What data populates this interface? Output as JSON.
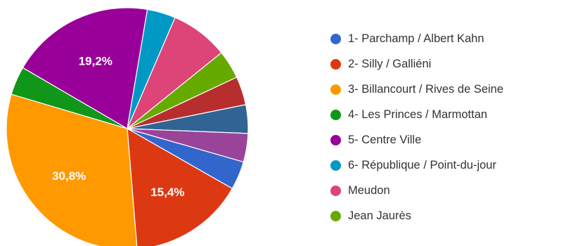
{
  "chart_data": {
    "type": "pie",
    "slices": [
      {
        "label": "1- Parchamp / Albert Kahn",
        "value": 3.8,
        "color": "#3366cc"
      },
      {
        "label": "2- Silly / Galliéni",
        "value": 15.4,
        "color": "#dc3912",
        "data_label": "15,4%"
      },
      {
        "label": "3- Billancourt / Rives de Seine",
        "value": 30.8,
        "color": "#ff9900",
        "data_label": "30,8%"
      },
      {
        "label": "4- Les Princes / Marmottan",
        "value": 3.8,
        "color": "#109618"
      },
      {
        "label": "5- Centre Ville",
        "value": 19.2,
        "color": "#990099",
        "data_label": "19,2%"
      },
      {
        "label": "6- République / Point-du-jour",
        "value": 3.8,
        "color": "#0099c6"
      },
      {
        "label": "Meudon",
        "value": 7.7,
        "color": "#dd4477"
      },
      {
        "label": "Jean Jaurès",
        "value": 3.8,
        "color": "#66aa00"
      },
      {
        "label": "",
        "value": 3.8,
        "color": "#b82e2e"
      },
      {
        "label": "",
        "value": 3.8,
        "color": "#316395"
      },
      {
        "label": "",
        "value": 3.8,
        "color": "#994499"
      }
    ],
    "legend_position": "right"
  }
}
